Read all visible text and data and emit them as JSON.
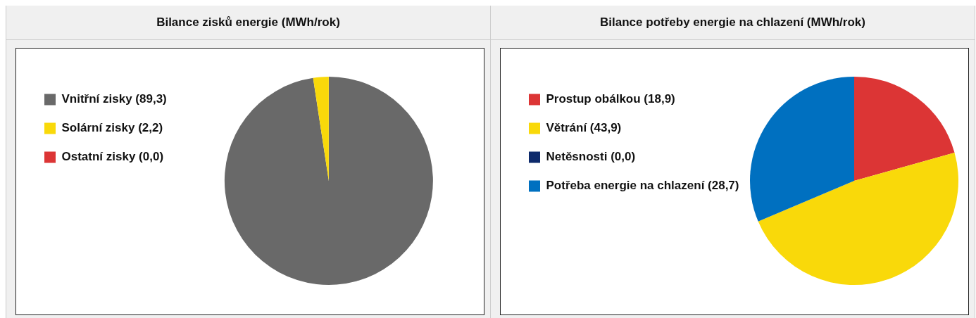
{
  "chart_data": [
    {
      "type": "pie",
      "title": "Bilance zisků energie (MWh/rok)",
      "categories": [
        "Vnitřní zisky",
        "Solární zisky",
        "Ostatní zisky"
      ],
      "values": [
        89.3,
        2.2,
        0.0
      ],
      "value_labels": [
        "(89,3)",
        "(2,2)",
        "(0,0)"
      ],
      "colors": [
        "#696969",
        "#f9d90a",
        "#dc3535"
      ],
      "legend": "top left"
    },
    {
      "type": "pie",
      "title": "Bilance potřeby energie na chlazení (MWh/rok)",
      "categories": [
        "Prostup obálkou",
        "Větrání",
        "Netěsnosti",
        "Potřeba energie na chlazení"
      ],
      "values": [
        18.9,
        43.9,
        0.0,
        28.7
      ],
      "value_labels": [
        "(18,9)",
        "(43,9)",
        "(0,0)",
        "(28,7)"
      ],
      "colors": [
        "#dc3535",
        "#f9d90a",
        "#0d2a6b",
        "#0070c0"
      ],
      "legend": "top left"
    }
  ]
}
